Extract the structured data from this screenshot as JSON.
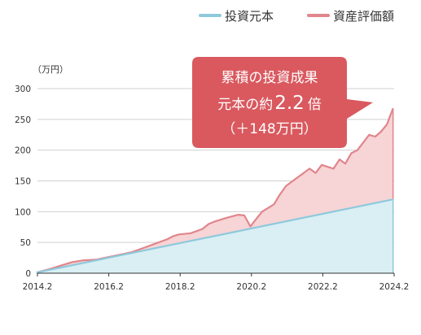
{
  "chart_data": {
    "type": "area",
    "title": "",
    "y_unit_label": "（万円）",
    "xlabel": "",
    "ylabel": "",
    "x_range": [
      2014.2,
      2024.2
    ],
    "ylim": [
      0,
      300
    ],
    "y_ticks": [
      0,
      50,
      100,
      150,
      200,
      250,
      300
    ],
    "x_tick_labels": [
      "2014.2",
      "2016.2",
      "2018.2",
      "2020.2",
      "2022.2",
      "2024.2"
    ],
    "grid": "horizontal",
    "legend_position": "top-right",
    "colors": {
      "principal": "#8ec9dc",
      "principal_fill": "#d9eff4",
      "valuation": "#e0868c",
      "valuation_fill": "#f7d4d5",
      "callout": "#d9595f"
    },
    "series": [
      {
        "name": "投資元本",
        "x": [
          2014.17,
          2024.17
        ],
        "values": [
          1,
          120
        ]
      },
      {
        "name": "資産評価額",
        "x": [
          2014.17,
          2014.5,
          2014.83,
          2015.17,
          2015.5,
          2015.83,
          2016.17,
          2016.5,
          2016.83,
          2017.17,
          2017.5,
          2017.83,
          2018.0,
          2018.17,
          2018.5,
          2018.83,
          2019.0,
          2019.17,
          2019.5,
          2019.83,
          2020.0,
          2020.17,
          2020.33,
          2020.5,
          2020.83,
          2021.0,
          2021.17,
          2021.5,
          2021.83,
          2022.0,
          2022.17,
          2022.5,
          2022.67,
          2022.83,
          2023.0,
          2023.17,
          2023.5,
          2023.67,
          2023.83,
          2024.0,
          2024.17
        ],
        "values": [
          1,
          6,
          12,
          18,
          21,
          22,
          26,
          30,
          34,
          41,
          48,
          55,
          60,
          63,
          65,
          72,
          80,
          84,
          90,
          95,
          94,
          76,
          88,
          100,
          112,
          128,
          142,
          156,
          170,
          163,
          176,
          170,
          185,
          178,
          195,
          200,
          225,
          222,
          230,
          242,
          268
        ]
      }
    ]
  },
  "legend": {
    "principal_label": "投資元本",
    "valuation_label": "資産評価額"
  },
  "callout": {
    "line1": "累積の投資成果",
    "line2_prefix": "元本の約",
    "line2_value": "2.2",
    "line2_suffix": "倍",
    "line3": "（＋148万円）"
  }
}
